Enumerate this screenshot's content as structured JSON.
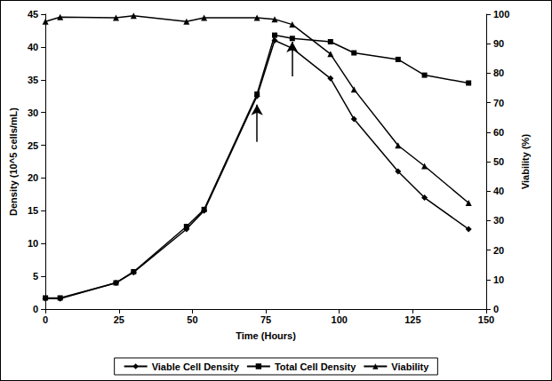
{
  "chart_data": {
    "type": "line",
    "x_label": "Time (Hours)",
    "y_label": "Density (10^5 cells/mL)",
    "y2_label": "Viability (%)",
    "xlim": [
      0,
      150
    ],
    "xticks": [
      0,
      25,
      50,
      75,
      100,
      125,
      150
    ],
    "ylim": [
      0,
      45
    ],
    "yticks": [
      0,
      5,
      10,
      15,
      20,
      25,
      30,
      35,
      40,
      45
    ],
    "y2lim": [
      0,
      100
    ],
    "y2ticks": [
      0,
      10,
      20,
      30,
      40,
      50,
      60,
      70,
      80,
      90,
      100
    ],
    "grid": false,
    "legend": "bottom",
    "x": [
      0,
      5,
      24,
      30,
      48,
      54,
      72,
      78,
      84,
      97,
      105,
      120,
      129,
      144
    ],
    "series": [
      {
        "name": "Viable Cell Density",
        "color": "#000000",
        "marker": "diamond",
        "line_style": "solid",
        "values": [
          1.6,
          1.6,
          4.0,
          5.6,
          12.2,
          15.0,
          32.5,
          41.0,
          39.8,
          35.2,
          29.0,
          21.0,
          17.0,
          12.2
        ]
      },
      {
        "name": "Total Cell Density",
        "color": "#000000",
        "marker": "square",
        "line_style": "solid",
        "values": [
          1.7,
          1.7,
          4.0,
          5.7,
          12.6,
          15.2,
          32.8,
          41.8,
          41.3,
          40.8,
          39.1,
          38.1,
          35.7,
          34.5
        ]
      },
      {
        "name": "Viability",
        "color": "#000000",
        "marker": "triangle",
        "line_style": "solid",
        "axis": "y2",
        "values": [
          97.5,
          99.0,
          98.8,
          99.5,
          97.5,
          98.8,
          98.8,
          98.3,
          96.5,
          86.5,
          74.5,
          55.5,
          48.5,
          36.0
        ]
      }
    ],
    "arrows": [
      {
        "x": 72,
        "from": 25.5,
        "to": 31.2
      },
      {
        "x": 84,
        "from": 35.5,
        "to": 40.8
      }
    ]
  }
}
